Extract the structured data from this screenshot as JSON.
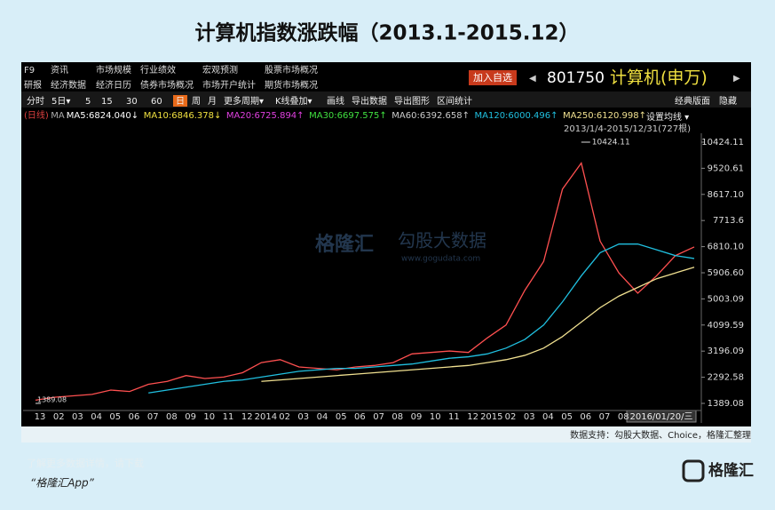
{
  "header": {
    "title": "计算机指数涨跌幅（2013.1-2015.12）"
  },
  "terminal": {
    "menu_row1": [
      "F9",
      "资讯",
      "市场规模",
      "行业绩效",
      "宏观预测",
      "股票市场概况"
    ],
    "menu_row2": [
      "研报",
      "经济数据",
      "经济日历",
      "债券市场概况",
      "市场开户统计",
      "期货市场概况"
    ],
    "add_button": "加入自选",
    "security_code": "801750",
    "security_name": "计算机(申万)",
    "toolbar": [
      "分时",
      "5日▾",
      "5",
      "15",
      "30",
      "60",
      "日",
      "周",
      "月",
      "更多周期▾",
      "K线叠加▾",
      "画线",
      "导出数据",
      "导出图形",
      "区间统计"
    ],
    "layout_buttons": [
      "经典版面",
      "隐藏"
    ],
    "ma_settings": "设置均线 ▾",
    "range_label": "2013/1/4-2015/12/31(727根)",
    "watermark": [
      "格隆汇",
      "勾股大数据",
      "www.gogudata.com"
    ],
    "ma_legend": [
      {
        "text": "(日线)",
        "color": "#e04040"
      },
      {
        "text": "MA",
        "color": "#aaaaaa"
      },
      {
        "text": "MA5:6824.040↓",
        "color": "#ffffff"
      },
      {
        "text": "MA10:6846.378↓",
        "color": "#f0e040"
      },
      {
        "text": "MA20:6725.894↑",
        "color": "#e040e0"
      },
      {
        "text": "MA30:6697.575↑",
        "color": "#40e040"
      },
      {
        "text": "MA60:6392.658↑",
        "color": "#cccccc"
      },
      {
        "text": "MA120:6000.496↑",
        "color": "#20c0e0"
      },
      {
        "text": "MA250:6120.998↑",
        "color": "#f0e090"
      }
    ],
    "crosshair_label": "2016/01/20/三"
  },
  "chart_data": {
    "type": "line",
    "categories": [
      "13",
      "02",
      "03",
      "04",
      "05",
      "06",
      "07",
      "08",
      "09",
      "10",
      "11",
      "12",
      "2014",
      "02",
      "03",
      "04",
      "05",
      "06",
      "07",
      "08",
      "09",
      "10",
      "11",
      "12",
      "2015",
      "02",
      "03",
      "04",
      "05",
      "06",
      "07",
      "08",
      null,
      null,
      null,
      null
    ],
    "series": [
      {
        "color": "#ff5050",
        "values": [
          1500,
          1600,
          1650,
          1700,
          1850,
          1800,
          2050,
          2150,
          2350,
          2250,
          2300,
          2450,
          2800,
          2900,
          2650,
          2600,
          2550,
          2650,
          2700,
          2800,
          3100,
          3150,
          3200,
          3150,
          3650,
          4100,
          5300,
          6300,
          8800,
          9700,
          7000,
          5900,
          5200,
          5800,
          6500,
          6800
        ]
      },
      {
        "color": "#20c0e0",
        "values": [
          null,
          null,
          null,
          null,
          null,
          null,
          1750,
          1850,
          1950,
          2050,
          2150,
          2200,
          2300,
          2400,
          2500,
          2550,
          2600,
          2600,
          2650,
          2700,
          2750,
          2850,
          2950,
          3000,
          3100,
          3300,
          3600,
          4100,
          4900,
          5800,
          6600,
          6900,
          6900,
          6700,
          6500,
          6400
        ]
      },
      {
        "color": "#f0e090",
        "values": [
          null,
          null,
          null,
          null,
          null,
          null,
          null,
          null,
          null,
          null,
          null,
          null,
          2150,
          2200,
          2250,
          2300,
          2350,
          2400,
          2450,
          2500,
          2550,
          2600,
          2650,
          2700,
          2800,
          2900,
          3050,
          3300,
          3700,
          4200,
          4700,
          5100,
          5400,
          5700,
          5900,
          6100
        ]
      }
    ],
    "ylim": [
      1143,
      10731
    ],
    "yticks": [
      1389.08,
      2292.58,
      3196.09,
      4099.59,
      5003.09,
      {
        "value": 5906.6,
        "label": "5906.60"
      },
      {
        "value": 6810.1,
        "label": "6810.10"
      },
      7713.6,
      {
        "value": 8617.1,
        "label": "8617.10"
      },
      9520.61,
      10424.11
    ],
    "high": 10424.11,
    "low": 1389.08
  },
  "footer": {
    "source": "数据支持：勾股大数据、Choice，格隆汇整理",
    "promo_line1": "了解更多数据详情，请下载",
    "promo_line2": "“格隆汇App”",
    "logo_text": "格隆汇"
  }
}
